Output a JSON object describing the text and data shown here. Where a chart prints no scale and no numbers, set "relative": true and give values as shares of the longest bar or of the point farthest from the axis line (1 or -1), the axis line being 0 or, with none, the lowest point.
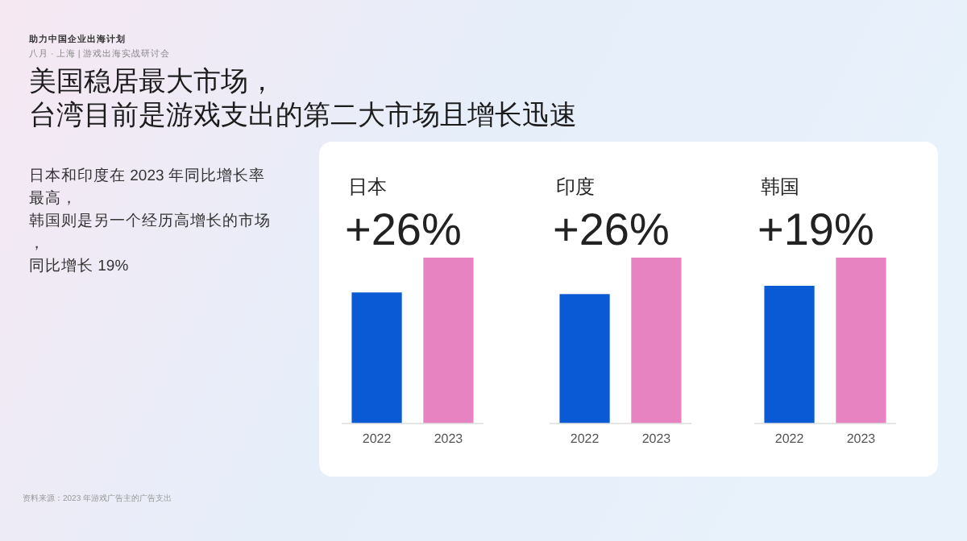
{
  "chart_data": [
    {
      "type": "other",
      "title": "美国稳居最大市场，台湾目前是游戏支出的第二大市场且增长迅速",
      "annotations": [
        "助力中国企业出海计划",
        "八月 · 上海 | 游戏出海实战研讨会",
        "日本和印度在 2023 年同比增长率最高，韩国则是另一个经历高增长的市场，同比增长 19%",
        "资料来源：2023 年游戏广告主的广告支出"
      ]
    },
    {
      "type": "bar",
      "title": "日本",
      "subtitle": "+26%",
      "categories": [
        "2022",
        "2023"
      ],
      "values": [
        0.79,
        1
      ],
      "colors": [
        "#0a5ad6",
        "#e683c0"
      ],
      "relative": true
    },
    {
      "type": "bar",
      "title": "印度",
      "subtitle": "+26%",
      "categories": [
        "2022",
        "2023"
      ],
      "values": [
        0.78,
        1
      ],
      "colors": [
        "#0a5ad6",
        "#e683c0"
      ],
      "relative": true
    },
    {
      "type": "bar",
      "title": "韩国",
      "subtitle": "+19%",
      "categories": [
        "2022",
        "2023"
      ],
      "values": [
        0.83,
        1
      ],
      "colors": [
        "#0a5ad6",
        "#e683c0"
      ],
      "relative": true
    }
  ]
}
